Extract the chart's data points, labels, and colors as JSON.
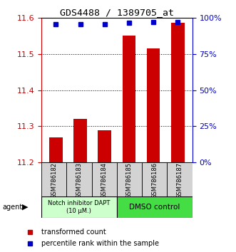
{
  "title": "GDS4488 / 1389705_at",
  "samples": [
    "GSM786182",
    "GSM786183",
    "GSM786184",
    "GSM786185",
    "GSM786186",
    "GSM786187"
  ],
  "transformed_counts": [
    11.27,
    11.32,
    11.29,
    11.55,
    11.515,
    11.585
  ],
  "percentile_ranks": [
    95.5,
    95.5,
    95.5,
    96.5,
    97,
    97
  ],
  "ylim_left": [
    11.2,
    11.6
  ],
  "ylim_right": [
    0,
    100
  ],
  "yticks_left": [
    11.2,
    11.3,
    11.4,
    11.5,
    11.6
  ],
  "yticks_right": [
    0,
    25,
    50,
    75,
    100
  ],
  "bar_color": "#cc0000",
  "dot_color": "#0000cc",
  "group1_label": "Notch inhibitor DAPT\n(10 μM.)",
  "group2_label": "DMSO control",
  "group1_color": "#ccffcc",
  "group2_color": "#44dd44",
  "left_axis_color": "#cc0000",
  "right_axis_color": "#0000cc",
  "legend_bar_label": "transformed count",
  "legend_dot_label": "percentile rank within the sample",
  "agent_label": "agent"
}
